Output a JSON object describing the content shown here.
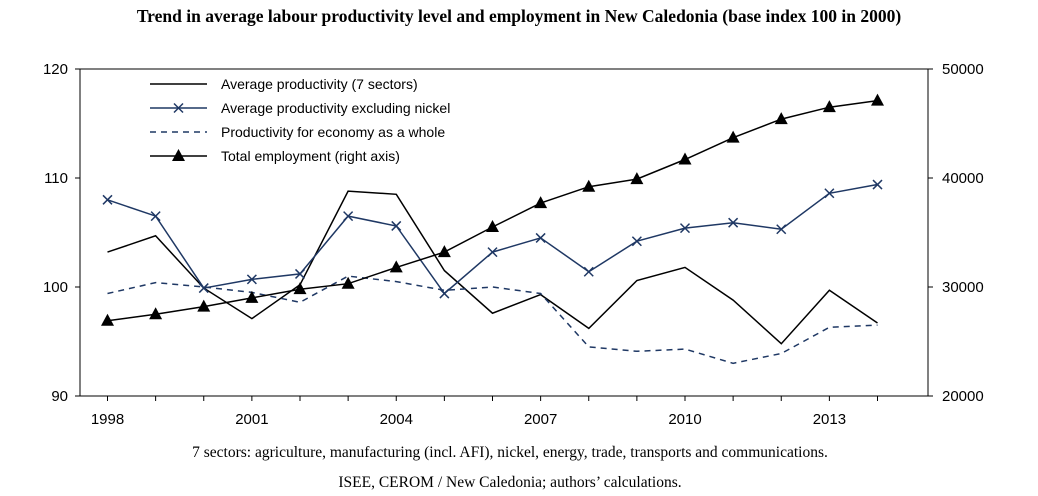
{
  "title": "Trend in average labour productivity level and employment in New Caledonia (base index 100 in 2000)",
  "notes": {
    "sectors": "7 sectors: agriculture, manufacturing (incl. AFI), nickel, energy, trade, transports and communications.",
    "source": "ISEE, CEROM / New Caledonia; authors’ calculations."
  },
  "colors": {
    "black": "#000000",
    "navy": "#1f3864"
  },
  "chart_data": {
    "type": "line",
    "title": "Trend in average labour productivity level and employment in New Caledonia (base index 100 in 2000)",
    "x": [
      1998,
      1999,
      2000,
      2001,
      2002,
      2003,
      2004,
      2005,
      2006,
      2007,
      2008,
      2009,
      2010,
      2011,
      2012,
      2013,
      2014
    ],
    "x_tick_labels": [
      "1998",
      "2001",
      "2004",
      "2007",
      "2010",
      "2013"
    ],
    "y_left": {
      "ylim": [
        90,
        120
      ],
      "ticks": [
        "90",
        "100",
        "110",
        "120"
      ]
    },
    "y_right": {
      "ylim": [
        20000,
        50000
      ],
      "ticks": [
        "20000",
        "30000",
        "40000",
        "50000"
      ]
    },
    "grid": false,
    "legend_position": "top-left",
    "series": [
      {
        "name": "Average productivity (7 sectors)",
        "axis": "left",
        "color": "#000000",
        "style": "solid",
        "marker": "none",
        "values": [
          103.2,
          104.7,
          99.9,
          97.1,
          100.2,
          108.8,
          108.5,
          101.5,
          97.6,
          99.3,
          96.2,
          100.6,
          101.8,
          98.8,
          94.8,
          99.7,
          96.7
        ]
      },
      {
        "name": "Average productivity  excluding nickel",
        "axis": "left",
        "color": "#1f3864",
        "style": "solid",
        "marker": "x",
        "values": [
          108.0,
          106.5,
          99.9,
          100.7,
          101.2,
          106.5,
          105.6,
          99.4,
          103.2,
          104.5,
          101.4,
          104.2,
          105.4,
          105.9,
          105.3,
          108.6,
          109.4
        ]
      },
      {
        "name": "Productivity for economy as a whole",
        "axis": "left",
        "color": "#1f3864",
        "style": "dashed",
        "marker": "none",
        "values": [
          99.4,
          100.4,
          100.0,
          99.5,
          98.6,
          101.0,
          100.5,
          99.7,
          100.0,
          99.4,
          94.5,
          94.1,
          94.3,
          93.0,
          93.9,
          96.3,
          96.5
        ]
      },
      {
        "name": "Total employment (right axis)",
        "axis": "right",
        "color": "#000000",
        "style": "solid",
        "marker": "triangle",
        "values": [
          26900,
          27500,
          28200,
          29000,
          29800,
          30300,
          31800,
          33200,
          35500,
          37700,
          39200,
          39900,
          41700,
          43700,
          45400,
          46500,
          47100
        ]
      }
    ]
  }
}
